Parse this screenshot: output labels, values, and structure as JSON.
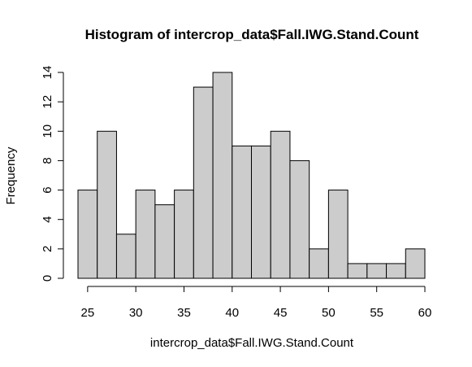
{
  "chart_data": {
    "type": "bar",
    "title": "Histogram of intercrop_data$Fall.IWG.Stand.Count",
    "xlabel": "intercrop_data$Fall.IWG.Stand.Count",
    "ylabel": "Frequency",
    "bin_edges": [
      24,
      26,
      28,
      30,
      32,
      34,
      36,
      38,
      40,
      42,
      44,
      46,
      48,
      50,
      52,
      54,
      56,
      58,
      60
    ],
    "values": [
      6,
      10,
      3,
      6,
      5,
      6,
      13,
      14,
      9,
      9,
      10,
      8,
      2,
      6,
      1,
      1,
      1,
      2
    ],
    "xlim": [
      24,
      60
    ],
    "ylim": [
      0,
      14
    ],
    "x_ticks": [
      25,
      30,
      35,
      40,
      45,
      50,
      55,
      60
    ],
    "y_ticks": [
      0,
      2,
      4,
      6,
      8,
      10,
      12,
      14
    ],
    "bar_fill": "#cccccc",
    "bar_stroke": "#000000",
    "grid": false
  }
}
